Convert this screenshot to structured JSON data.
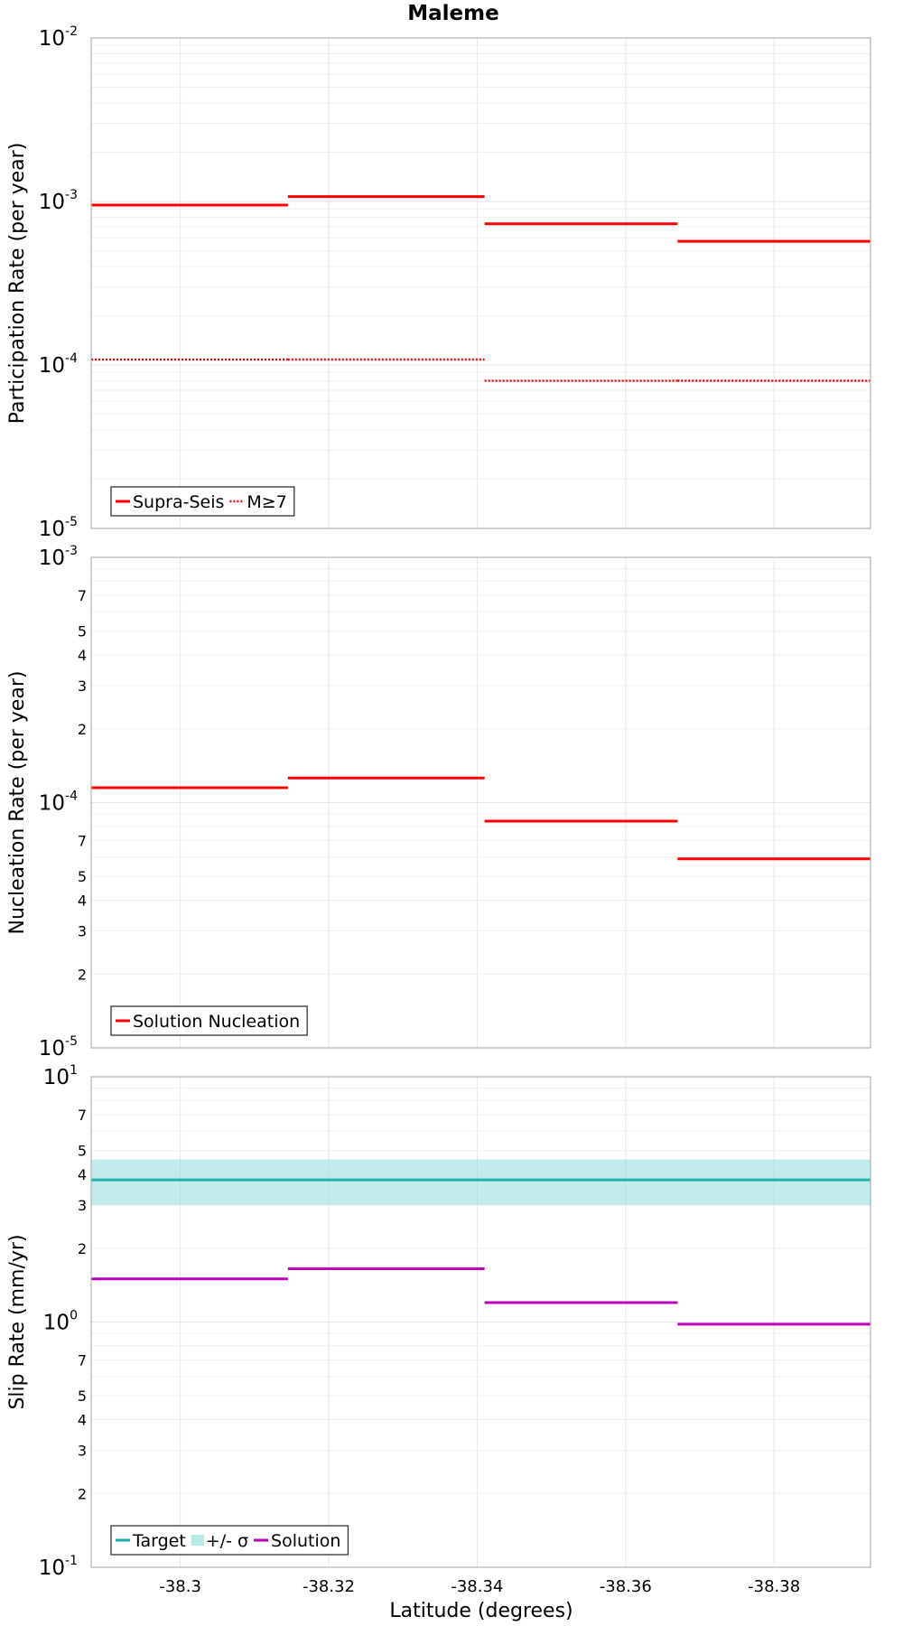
{
  "figure": {
    "title": "Maleme",
    "xlabel": "Latitude (degrees)",
    "x_ticks": [
      -38.3,
      -38.32,
      -38.34,
      -38.36,
      -38.38
    ],
    "x_tick_labels": [
      "-38.3",
      "-38.32",
      "-38.34",
      "-38.36",
      "-38.38"
    ]
  },
  "chart_data": [
    {
      "type": "line",
      "style": "step",
      "ylabel": "Participation Rate (per year)",
      "yscale": "log",
      "xlim": [
        -38.288,
        -38.393
      ],
      "ylim": [
        1e-05,
        0.01
      ],
      "y_major_ticks": [
        {
          "value": 1e-05,
          "base": "10",
          "exp": "-5"
        },
        {
          "value": 0.0001,
          "base": "10",
          "exp": "-4"
        },
        {
          "value": 0.001,
          "base": "10",
          "exp": "-3"
        },
        {
          "value": 0.01,
          "base": "10",
          "exp": "-2"
        }
      ],
      "y_minor_labels": [],
      "grid": true,
      "legend": {
        "position": "bottom-left",
        "entries": [
          "Supra-Seis",
          "M≥7"
        ]
      },
      "series": [
        {
          "name": "Supra-Seis",
          "color": "#ff0000",
          "dash": "solid",
          "segments": [
            {
              "x0": -38.288,
              "x1": -38.3145,
              "y": 0.00095
            },
            {
              "x0": -38.3145,
              "x1": -38.341,
              "y": 0.00107
            },
            {
              "x0": -38.341,
              "x1": -38.367,
              "y": 0.00073
            },
            {
              "x0": -38.367,
              "x1": -38.393,
              "y": 0.00057
            }
          ]
        },
        {
          "name": "M≥7",
          "color": "#ff0000",
          "dash": "dotted",
          "segments": [
            {
              "x0": -38.288,
              "x1": -38.3145,
              "y": 0.000108
            },
            {
              "x0": -38.3145,
              "x1": -38.341,
              "y": 0.000108
            },
            {
              "x0": -38.341,
              "x1": -38.367,
              "y": 8e-05
            },
            {
              "x0": -38.367,
              "x1": -38.393,
              "y": 8e-05
            }
          ]
        }
      ]
    },
    {
      "type": "line",
      "style": "step",
      "ylabel": "Nucleation Rate (per year)",
      "yscale": "log",
      "xlim": [
        -38.288,
        -38.393
      ],
      "ylim": [
        1e-05,
        0.001
      ],
      "y_major_ticks": [
        {
          "value": 1e-05,
          "base": "10",
          "exp": "-5"
        },
        {
          "value": 0.0001,
          "base": "10",
          "exp": "-4"
        },
        {
          "value": 0.001,
          "base": "10",
          "exp": "-3"
        }
      ],
      "y_minor_labels": [
        {
          "value": 2e-05,
          "label": "2"
        },
        {
          "value": 3e-05,
          "label": "3"
        },
        {
          "value": 4e-05,
          "label": "4"
        },
        {
          "value": 5e-05,
          "label": "5"
        },
        {
          "value": 7e-05,
          "label": "7"
        },
        {
          "value": 0.0002,
          "label": "2"
        },
        {
          "value": 0.0003,
          "label": "3"
        },
        {
          "value": 0.0004,
          "label": "4"
        },
        {
          "value": 0.0005,
          "label": "5"
        },
        {
          "value": 0.0007,
          "label": "7"
        }
      ],
      "grid": true,
      "legend": {
        "position": "bottom-left",
        "entries": [
          "Solution Nucleation"
        ]
      },
      "series": [
        {
          "name": "Solution Nucleation",
          "color": "#ff0000",
          "dash": "solid",
          "segments": [
            {
              "x0": -38.288,
              "x1": -38.3145,
              "y": 0.000115
            },
            {
              "x0": -38.3145,
              "x1": -38.341,
              "y": 0.000126
            },
            {
              "x0": -38.341,
              "x1": -38.367,
              "y": 8.4e-05
            },
            {
              "x0": -38.367,
              "x1": -38.393,
              "y": 5.9e-05
            }
          ]
        }
      ]
    },
    {
      "type": "line",
      "style": "step",
      "ylabel": "Slip Rate (mm/yr)",
      "yscale": "log",
      "xlim": [
        -38.288,
        -38.393
      ],
      "ylim": [
        0.1,
        10
      ],
      "y_major_ticks": [
        {
          "value": 0.1,
          "base": "10",
          "exp": "-1"
        },
        {
          "value": 1,
          "base": "10",
          "exp": "0"
        },
        {
          "value": 10,
          "base": "10",
          "exp": "1"
        }
      ],
      "y_minor_labels": [
        {
          "value": 0.2,
          "label": "2"
        },
        {
          "value": 0.3,
          "label": "3"
        },
        {
          "value": 0.4,
          "label": "4"
        },
        {
          "value": 0.5,
          "label": "5"
        },
        {
          "value": 0.7,
          "label": "7"
        },
        {
          "value": 2,
          "label": "2"
        },
        {
          "value": 3,
          "label": "3"
        },
        {
          "value": 4,
          "label": "4"
        },
        {
          "value": 5,
          "label": "5"
        },
        {
          "value": 7,
          "label": "7"
        }
      ],
      "grid": true,
      "legend": {
        "position": "bottom-left",
        "entries": [
          "Target",
          "+/- σ",
          "Solution"
        ]
      },
      "band": {
        "name": "+/- σ",
        "color": "#99e0dd",
        "opacity": 0.6,
        "x0": -38.288,
        "x1": -38.393,
        "y0": 3.0,
        "y1": 4.6
      },
      "series": [
        {
          "name": "Target",
          "color": "#20b2aa",
          "dash": "solid",
          "segments": [
            {
              "x0": -38.288,
              "x1": -38.3145,
              "y": 3.8
            },
            {
              "x0": -38.3145,
              "x1": -38.341,
              "y": 3.8
            },
            {
              "x0": -38.341,
              "x1": -38.367,
              "y": 3.8
            },
            {
              "x0": -38.367,
              "x1": -38.393,
              "y": 3.8
            }
          ]
        },
        {
          "name": "Solution",
          "color": "#bb00bb",
          "dash": "solid",
          "segments": [
            {
              "x0": -38.288,
              "x1": -38.3145,
              "y": 1.5
            },
            {
              "x0": -38.3145,
              "x1": -38.341,
              "y": 1.65
            },
            {
              "x0": -38.341,
              "x1": -38.367,
              "y": 1.2
            },
            {
              "x0": -38.367,
              "x1": -38.393,
              "y": 0.98
            }
          ]
        }
      ]
    }
  ]
}
